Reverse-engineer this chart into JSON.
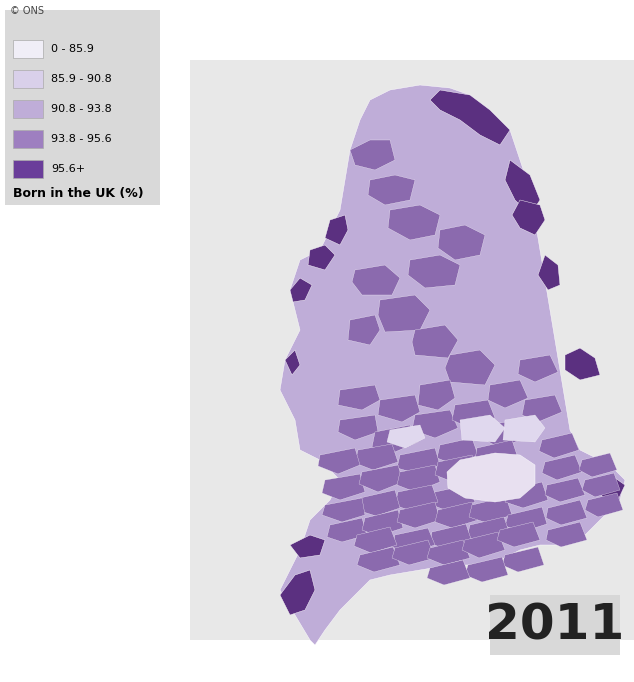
{
  "title_year": "2011",
  "legend_title": "Born in the UK (%)",
  "legend_items": [
    {
      "label": "95.6+",
      "color": "#6a3d9a"
    },
    {
      "label": "93.8 - 95.6",
      "color": "#9e7fc0"
    },
    {
      "label": "90.8 - 93.8",
      "color": "#bfadd8"
    },
    {
      "label": "85.9 - 90.8",
      "color": "#d9d0ea"
    },
    {
      "label": "0 - 85.9",
      "color": "#f0eef7"
    }
  ],
  "legend_bg_color": "#d6d6d6",
  "year_box_color": "#d6d6d6",
  "year_fontsize": 36,
  "legend_title_fontsize": 9,
  "legend_label_fontsize": 8,
  "source_text": "© ONS",
  "source_fontsize": 7,
  "fig_width": 6.34,
  "fig_height": 6.82,
  "dpi": 100,
  "bg_color": "#ffffff",
  "map_bg": "#e8e8e8"
}
